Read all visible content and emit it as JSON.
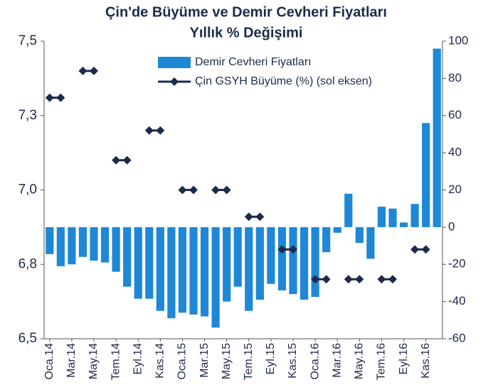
{
  "chart_data": {
    "type": "combo",
    "title": "Çin'de Büyüme ve Demir Cevheri Fiyatları",
    "subtitle": "Yıllık % Değişimi",
    "categories": [
      "Oca.14",
      null,
      "Mar.14",
      null,
      "May.14",
      null,
      "Tem.14",
      null,
      "Eyl.14",
      null,
      "Kas.14",
      null,
      "Oca.15",
      null,
      "Mar.15",
      null,
      "May.15",
      null,
      "Tem.15",
      null,
      "Eyl.15",
      null,
      "Kas.15",
      null,
      "Oca.16",
      null,
      "Mar.16",
      null,
      "May.16",
      null,
      "Tem.16",
      null,
      "Eyl.16",
      null,
      "Kas.16",
      null
    ],
    "series": [
      {
        "name": "Demir Cevheri Fiyatları",
        "type": "bar",
        "axis": "y2",
        "color": "#1e88d6",
        "values": [
          -14.5,
          -21,
          -20,
          -16,
          -18,
          -19,
          -24,
          -32,
          -38.5,
          -38.5,
          -45,
          -49,
          -46,
          -47,
          -48,
          -54,
          -40,
          -32,
          -45,
          -39,
          -30.5,
          -34,
          -36,
          -39,
          -37.5,
          -13.5,
          -3,
          18,
          -8.5,
          -17,
          11,
          10,
          2.5,
          12.5,
          56,
          96
        ]
      },
      {
        "name": "Çin GSYH Büyüme (%) (sol eksen)",
        "type": "line",
        "axis": "y",
        "color": "#1c2b4a",
        "values": [
          7.31,
          7.31,
          null,
          7.4,
          7.4,
          null,
          7.1,
          7.1,
          null,
          7.2,
          7.2,
          null,
          7.0,
          7.0,
          null,
          7.0,
          7.0,
          null,
          6.91,
          6.91,
          null,
          6.8,
          6.8,
          null,
          6.7,
          6.7,
          null,
          6.7,
          6.7,
          null,
          6.7,
          6.7,
          null,
          6.8,
          6.8,
          null
        ]
      }
    ],
    "ylim": [
      6.5,
      7.5
    ],
    "yticks": [
      {
        "value": 6.5,
        "label": "6,5"
      },
      {
        "value": 6.75,
        "label": "6,8"
      },
      {
        "value": 7.0,
        "label": "7,0"
      },
      {
        "value": 7.25,
        "label": "7,3"
      },
      {
        "value": 7.5,
        "label": "7,5"
      }
    ],
    "y2lim": [
      -60,
      100
    ],
    "y2ticks": [
      -60,
      -40,
      -20,
      0,
      20,
      40,
      60,
      80,
      100
    ],
    "legend": "top"
  }
}
